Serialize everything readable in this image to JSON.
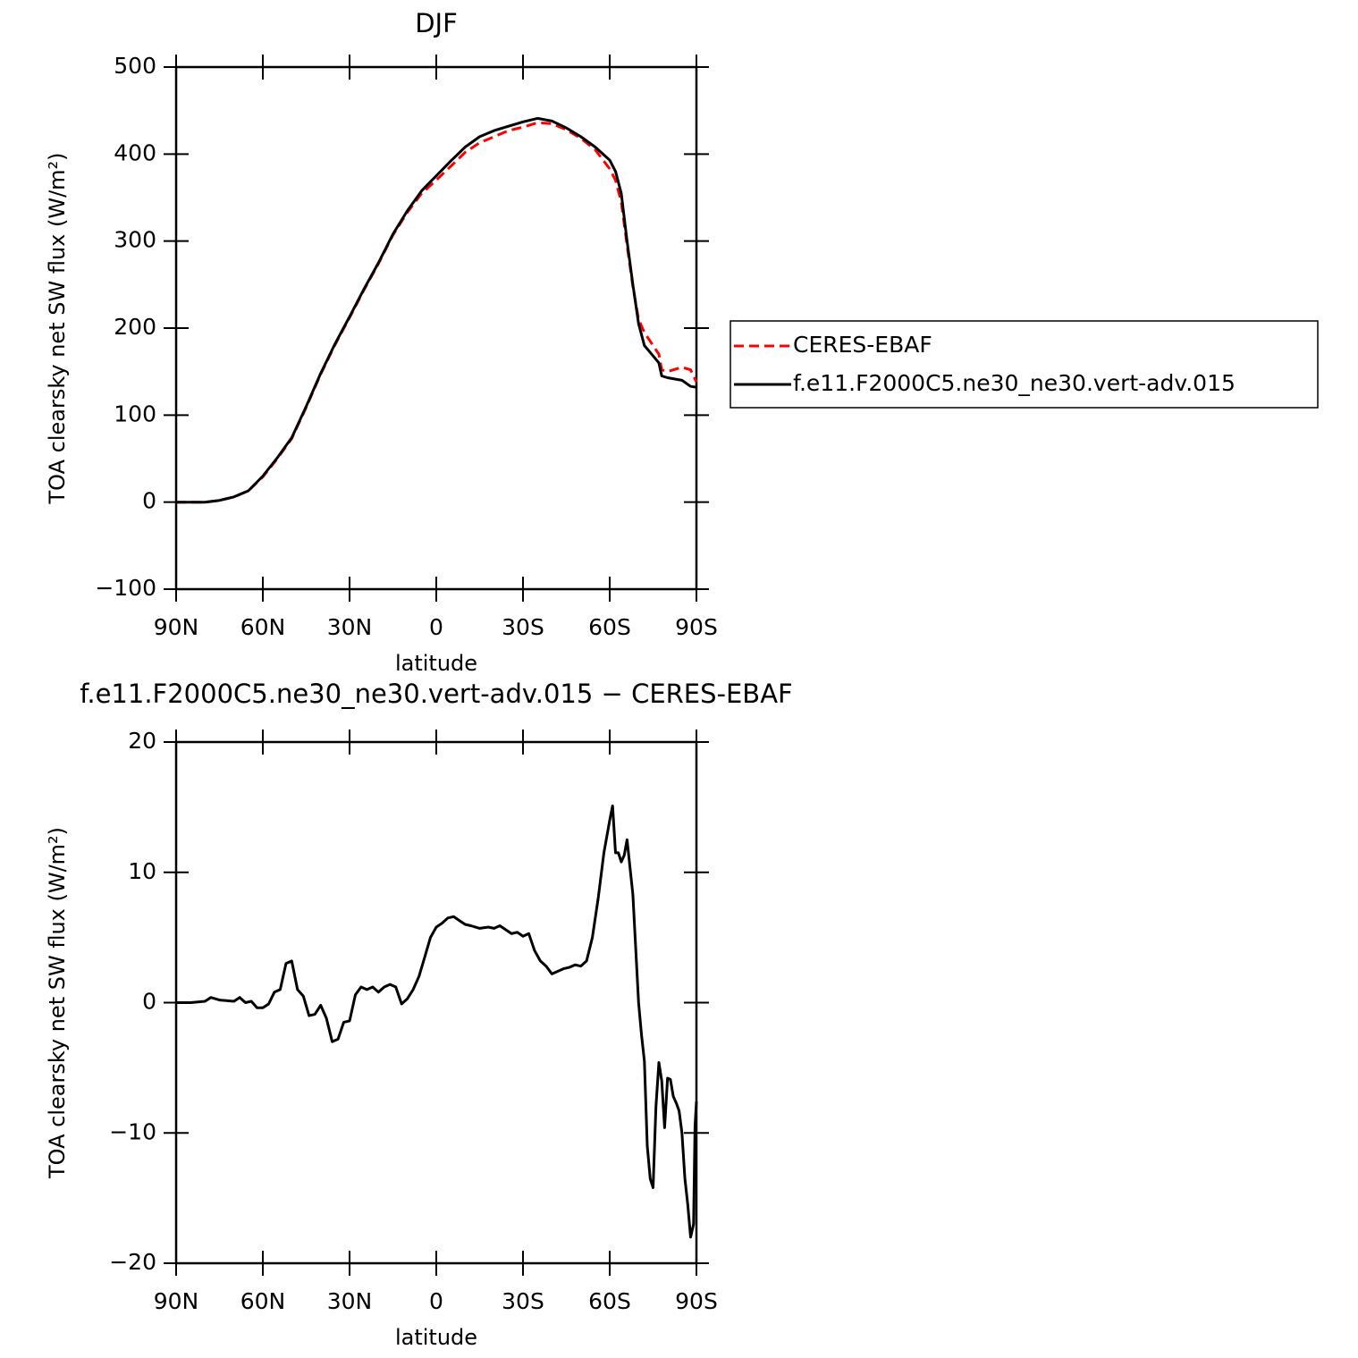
{
  "chart_data": [
    {
      "type": "line",
      "title": "DJF",
      "x_label": "latitude",
      "y_label": "TOA clearsky net SW flux (W/m²)",
      "x": [
        90,
        85,
        80,
        75,
        70,
        65,
        60,
        55,
        50,
        45,
        40,
        35,
        30,
        25,
        20,
        15,
        10,
        5,
        0,
        -5,
        -10,
        -15,
        -20,
        -25,
        -30,
        -35,
        -40,
        -45,
        -50,
        -55,
        -60,
        -62,
        -64,
        -66,
        -68,
        -70,
        -72,
        -75,
        -77,
        -78,
        -80,
        -85,
        -88,
        -90
      ],
      "series": [
        {
          "name": "CERES-EBAF",
          "color": "#ff0000",
          "linestyle": "dashed",
          "values": [
            0,
            0,
            0,
            2,
            6,
            13,
            29,
            50,
            73,
            109,
            147,
            181,
            212,
            244,
            274,
            307,
            333,
            355,
            370,
            386,
            402,
            413,
            420,
            427,
            431,
            436,
            435,
            428,
            418,
            405,
            383,
            370,
            345,
            295,
            248,
            210,
            195,
            180,
            170,
            152,
            150,
            155,
            152,
            138
          ]
        },
        {
          "name": "f.e11.F2000C5.ne30_ne30.vert-adv.015",
          "color": "#000000",
          "linestyle": "solid",
          "values": [
            0,
            0,
            0,
            2,
            6,
            13,
            30,
            51,
            74,
            110,
            148,
            182,
            213,
            245,
            275,
            308,
            335,
            358,
            375,
            392,
            408,
            420,
            427,
            432,
            437,
            441,
            438,
            430,
            420,
            408,
            393,
            380,
            355,
            300,
            250,
            205,
            180,
            168,
            160,
            145,
            143,
            140,
            133,
            132
          ]
        }
      ],
      "xlim": [
        90,
        -90
      ],
      "xticks": [
        {
          "value": 90,
          "label": "90N"
        },
        {
          "value": 60,
          "label": "60N"
        },
        {
          "value": 30,
          "label": "30N"
        },
        0,
        {
          "value": -30,
          "label": "30S"
        },
        {
          "value": -60,
          "label": "60S"
        },
        {
          "value": -90,
          "label": "90S"
        }
      ],
      "ylim": [
        -100,
        500
      ],
      "yticks": [
        {
          "value": -100,
          "label": "−100"
        },
        0,
        100,
        200,
        300,
        400,
        500
      ],
      "legend": "right"
    },
    {
      "type": "line",
      "title": "f.e11.F2000C5.ne30_ne30.vert-adv.015 − CERES-EBAF",
      "x_label": "latitude",
      "y_label": "TOA clearsky net SW flux (W/m²)",
      "x": [
        90,
        85,
        80,
        78,
        75,
        70,
        68,
        66,
        64,
        62,
        60,
        58,
        56,
        54,
        52,
        50,
        48,
        46,
        44,
        42,
        40,
        38,
        36,
        34,
        32,
        30,
        28,
        26,
        24,
        22,
        20,
        18,
        16,
        14,
        12,
        10,
        8,
        6,
        4,
        2,
        0,
        -2,
        -4,
        -6,
        -8,
        -10,
        -12,
        -15,
        -18,
        -20,
        -22,
        -24,
        -26,
        -28,
        -30,
        -32,
        -34,
        -36,
        -38,
        -40,
        -42,
        -44,
        -46,
        -48,
        -50,
        -52,
        -54,
        -56,
        -58,
        -60,
        -61,
        -62,
        -63,
        -64,
        -65,
        -66,
        -68,
        -70,
        -71,
        -72,
        -73,
        -74,
        -75,
        -76,
        -77,
        -78,
        -79,
        -80,
        -81,
        -82,
        -83,
        -84,
        -85,
        -86,
        -87,
        -88,
        -89,
        -89.5,
        -90
      ],
      "color": "#000000",
      "values": [
        0,
        0,
        0.1,
        0.4,
        0.2,
        0.1,
        0.4,
        0,
        0.1,
        -0.4,
        -0.4,
        -0.1,
        0.8,
        1,
        3,
        3.2,
        1,
        0.5,
        -1,
        -0.9,
        -0.2,
        -1.2,
        -3,
        -2.8,
        -1.5,
        -1.4,
        0.6,
        1.2,
        1,
        1.2,
        0.8,
        1.2,
        1.4,
        1.2,
        -0.1,
        0.3,
        1,
        2,
        3.5,
        5,
        5.8,
        6.1,
        6.5,
        6.6,
        6.3,
        6,
        5.9,
        5.7,
        5.8,
        5.7,
        5.9,
        5.6,
        5.3,
        5.4,
        5.1,
        5.3,
        4,
        3.2,
        2.8,
        2.2,
        2.4,
        2.6,
        2.7,
        2.9,
        2.8,
        3.2,
        5,
        8,
        11.5,
        14,
        15.1,
        11.5,
        11.5,
        10.8,
        11.3,
        12.5,
        8.3,
        0,
        -2.5,
        -4.5,
        -11,
        -13.5,
        -14.2,
        -8,
        -4.6,
        -6,
        -9.6,
        -5.8,
        -5.9,
        -7.2,
        -7.7,
        -8.3,
        -10,
        -13.5,
        -15.5,
        -18,
        -17,
        -9.5,
        -7.6
      ],
      "xlim": [
        90,
        -90
      ],
      "xticks": [
        {
          "value": 90,
          "label": "90N"
        },
        {
          "value": 60,
          "label": "60N"
        },
        {
          "value": 30,
          "label": "30N"
        },
        0,
        {
          "value": -30,
          "label": "30S"
        },
        {
          "value": -60,
          "label": "60S"
        },
        {
          "value": -90,
          "label": "90S"
        }
      ],
      "ylim": [
        -20,
        20
      ],
      "yticks": [
        {
          "value": -20,
          "label": "−20"
        },
        {
          "value": -10,
          "label": "−10"
        },
        0,
        10,
        20
      ]
    }
  ]
}
